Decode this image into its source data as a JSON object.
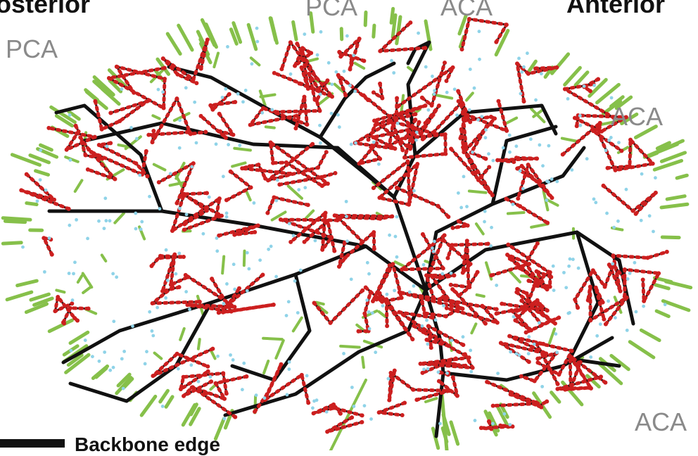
{
  "labels": {
    "posterior": "Posterior",
    "anterior": "Anterior",
    "pca": "PCA",
    "aca": "ACA"
  },
  "legend": {
    "backbone_edge": "Backbone edge"
  },
  "colors": {
    "backbone": "#111111",
    "vessel": "#cc1f1f",
    "node": "#8fd3e8",
    "terminal": "#86c04a",
    "label_gray": "#8a8a8a"
  }
}
